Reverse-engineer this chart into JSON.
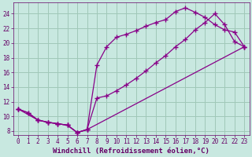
{
  "xlabel": "Windchill (Refroidissement éolien,°C)",
  "background_color": "#c8e8e0",
  "grid_color": "#a0c8b8",
  "line_color": "#880088",
  "xlim": [
    -0.5,
    23.5
  ],
  "ylim": [
    7.5,
    25.5
  ],
  "xticks": [
    0,
    1,
    2,
    3,
    4,
    5,
    6,
    7,
    8,
    9,
    10,
    11,
    12,
    13,
    14,
    15,
    16,
    17,
    18,
    19,
    20,
    21,
    22,
    23
  ],
  "yticks": [
    8,
    10,
    12,
    14,
    16,
    18,
    20,
    22,
    24
  ],
  "series1_x": [
    0,
    1,
    2,
    3,
    4,
    5,
    6,
    7,
    8,
    9,
    10,
    11,
    12,
    13,
    14,
    15,
    16,
    17,
    18,
    19,
    20,
    21,
    22,
    23
  ],
  "series1_y": [
    11.0,
    10.5,
    9.5,
    9.2,
    9.0,
    8.8,
    7.8,
    8.2,
    17.0,
    19.5,
    20.8,
    21.2,
    21.7,
    22.3,
    22.8,
    23.2,
    24.3,
    24.8,
    24.2,
    23.5,
    22.5,
    21.8,
    21.5,
    19.5
  ],
  "series2_x": [
    0,
    1,
    2,
    3,
    4,
    5,
    6,
    7,
    8,
    9,
    10,
    11,
    12,
    13,
    14,
    15,
    16,
    17,
    18,
    19,
    20,
    21,
    22,
    23
  ],
  "series2_y": [
    11.0,
    10.5,
    9.5,
    9.2,
    9.0,
    8.8,
    7.8,
    8.2,
    12.5,
    12.8,
    13.5,
    14.3,
    15.2,
    16.2,
    17.3,
    18.3,
    19.5,
    20.5,
    21.8,
    22.8,
    24.0,
    22.5,
    20.2,
    19.5
  ],
  "series3_x": [
    0,
    2,
    3,
    4,
    5,
    6,
    7,
    23
  ],
  "series3_y": [
    11.0,
    9.5,
    9.2,
    9.0,
    8.8,
    7.8,
    8.2,
    19.5
  ],
  "marker": "+",
  "markersize": 4,
  "linewidth": 0.9,
  "tick_labelsize": 5.5,
  "xlabel_fontsize": 6.5,
  "tick_color": "#660066",
  "label_color": "#660066"
}
